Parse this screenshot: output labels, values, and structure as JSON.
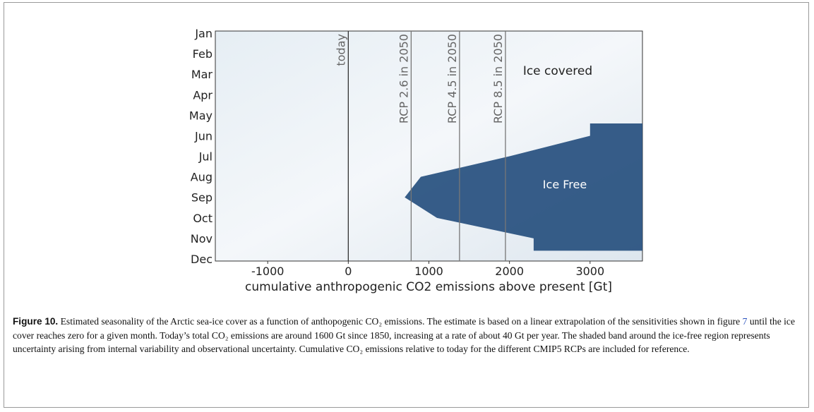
{
  "chart_data": {
    "type": "seasonality",
    "xlabel": "cumulative anthropogenic CO2 emissions above present [Gt]",
    "categories": [
      "Jan",
      "Feb",
      "Mar",
      "Apr",
      "May",
      "Jun",
      "Jul",
      "Aug",
      "Sep",
      "Oct",
      "Nov",
      "Dec"
    ],
    "xlim": [
      -1650,
      3650
    ],
    "xticks": [
      -1000,
      0,
      1000,
      2000,
      3000
    ],
    "series": [
      {
        "name": "Ice Free",
        "color": "#264f7e",
        "values": [
          null,
          null,
          null,
          null,
          null,
          3000,
          2000,
          900,
          700,
          1100,
          2300,
          null
        ]
      }
    ],
    "region_label": "Ice covered",
    "markers": [
      {
        "label": "today",
        "value": 0
      },
      {
        "label": "RCP 2.6 in 2050",
        "value": 780
      },
      {
        "label": "RCP 4.5 in 2050",
        "value": 1380
      },
      {
        "label": "RCP 8.5 in 2050",
        "value": 1950
      }
    ]
  },
  "caption": {
    "label": "Figure 10.",
    "text_before": "Estimated seasonality of the Arctic sea-ice cover as a function of anthopogenic CO₂ emissions. The estimate is based on a linear extrapolation of the sensitivities shown in figure ",
    "link": "7",
    "text_after": " until the ice cover reaches zero for a given month. Today’s total CO₂ emissions are around 1600 Gt since 1850, increasing at a rate of about 40 Gt per year. The shaded band around the ice-free region represents uncertainty arising from internal variability and observational uncertainty. Cumulative CO₂ emissions relative to today for the different CMIP5 RCPs are included for reference."
  }
}
